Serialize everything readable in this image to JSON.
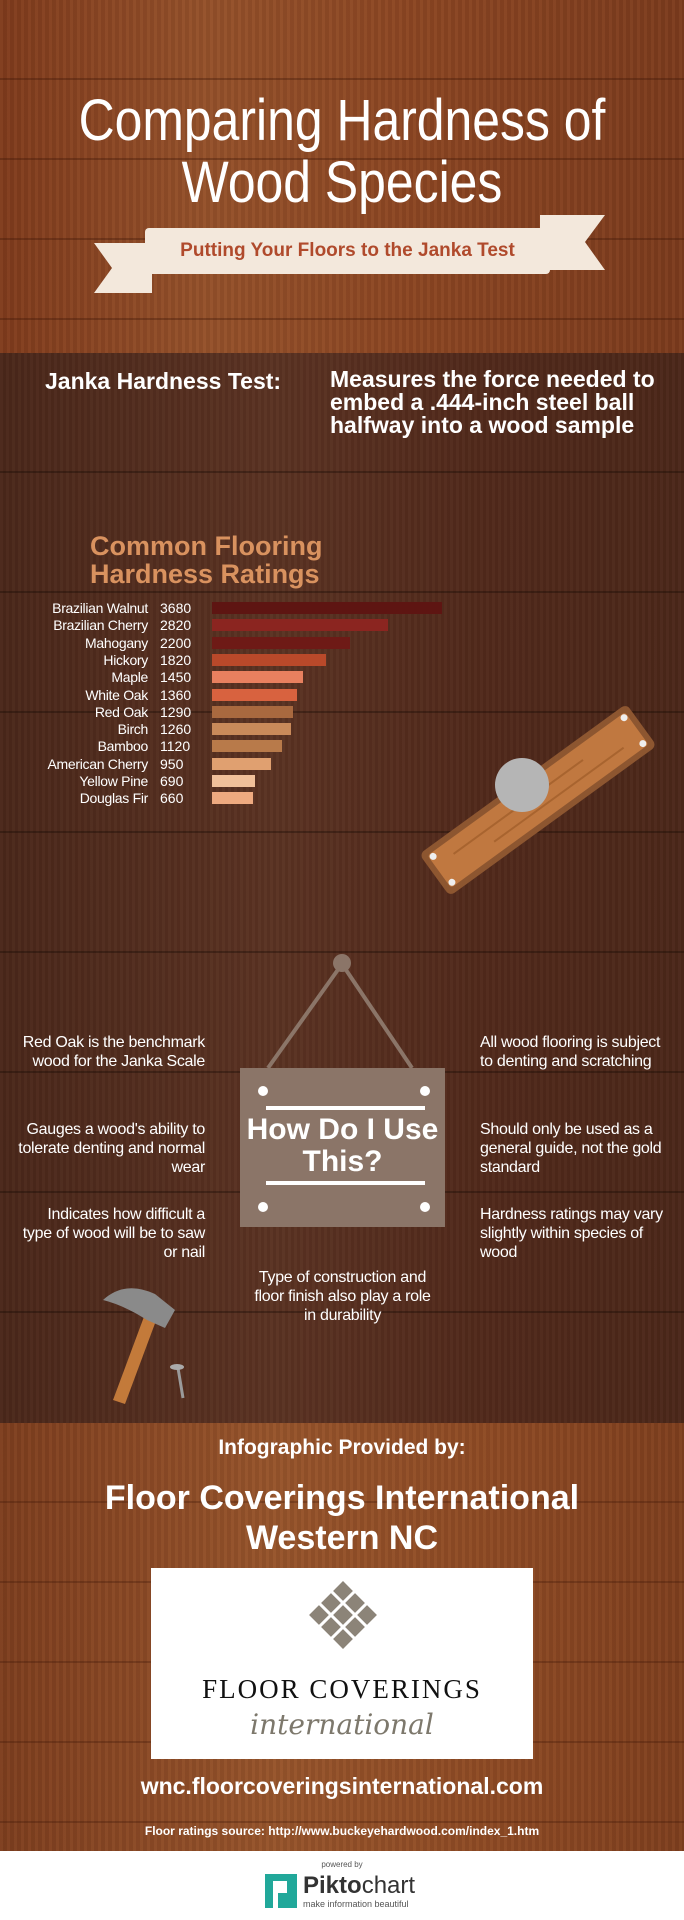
{
  "header": {
    "title_line1": "Comparing Hardness of",
    "title_line2": "Wood Species",
    "subtitle": "Putting Your Floors to the Janka Test"
  },
  "janka": {
    "label": "Janka Hardness Test:",
    "description": "Measures the force needed to embed a .444-inch steel ball halfway into a wood sample"
  },
  "chart_data": {
    "type": "bar",
    "orientation": "horizontal",
    "title": "Common Flooring Hardness Ratings",
    "categories": [
      "Brazilian Walnut",
      "Brazilian Cherry",
      "Mahogany",
      "Hickory",
      "Maple",
      "White Oak",
      "Red Oak",
      "Birch",
      "Bamboo",
      "American Cherry",
      "Yellow Pine",
      "Douglas Fir"
    ],
    "values": [
      3680,
      2820,
      2200,
      1820,
      1450,
      1360,
      1290,
      1260,
      1120,
      950,
      690,
      660
    ],
    "colors": [
      "#5e1512",
      "#8b2520",
      "#6e1a16",
      "#b9492a",
      "#e8805f",
      "#d8623f",
      "#a9693f",
      "#c98a5a",
      "#b87a4a",
      "#e0a070",
      "#f0c09a",
      "#eeaa80"
    ],
    "title_color": "#d9925f"
  },
  "how": {
    "sign": "How Do I Use This?",
    "left": [
      "Red Oak is the benchmark wood for the Janka Scale",
      "Gauges a wood's ability to tolerate denting and normal wear",
      "Indicates how difficult a type of wood will be to saw or nail"
    ],
    "right": [
      "All wood flooring is subject to denting and scratching",
      "Should only be used as a general guide, not the gold standard",
      "Hardness ratings may vary slightly within species of wood"
    ],
    "center": "Type of construction and floor finish also play a role in durability"
  },
  "provider": {
    "intro": "Infographic Provided by:",
    "name_line1": "Floor Coverings International",
    "name_line2": "Western NC",
    "logo_text1": "FLOOR COVERINGS",
    "logo_text2": "international",
    "url": "wnc.floorcoveringsinternational.com",
    "source": "Floor ratings source: http://www.buckeyehardwood.com/index_1.htm"
  },
  "footer": {
    "powered": "powered by",
    "brand1": "Pikto",
    "brand2": "chart",
    "tagline": "make information beautiful",
    "brand_color": "#21a89a"
  }
}
